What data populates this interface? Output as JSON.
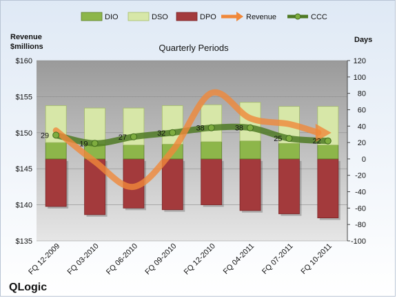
{
  "chart_data": {
    "type": "bar",
    "title": "Quarterly Periods",
    "brand": "QLogic",
    "y_left_label": [
      "Revenue",
      "$millions"
    ],
    "y_right_label": "Days",
    "y_left_range": [
      135,
      160
    ],
    "y_left_ticks": [
      "$160",
      "$155",
      "$150",
      "$145",
      "$140",
      "$135"
    ],
    "y_right_range": [
      -100,
      120
    ],
    "y_right_ticks": [
      "120",
      "100",
      "80",
      "60",
      "40",
      "20",
      "0",
      "-20",
      "-40",
      "-60",
      "-80",
      "-100"
    ],
    "categories": [
      "FQ 12-2009",
      "FQ 03-2010",
      "FQ 06-2010",
      "FQ 09-2010",
      "FQ 12-2010",
      "FQ 04-2011",
      "FQ 07-2011",
      "FQ 10-2011"
    ],
    "series": [
      {
        "name": "DIO",
        "axis": "right",
        "kind": "stacked-bar",
        "color": "#8db64a",
        "values": [
          20,
          18,
          17,
          18,
          21,
          22,
          19,
          17
        ]
      },
      {
        "name": "DSO",
        "axis": "right",
        "kind": "stacked-bar",
        "color": "#d7e7a8",
        "values": [
          45,
          44,
          45,
          47,
          45,
          47,
          45,
          47
        ]
      },
      {
        "name": "DPO",
        "axis": "right",
        "kind": "stacked-bar-negative",
        "color": "#a33a3c",
        "values": [
          -58,
          -68,
          -60,
          -62,
          -56,
          -63,
          -67,
          -72
        ]
      },
      {
        "name": "Revenue",
        "axis": "left",
        "kind": "line",
        "color": "#f0883a",
        "values": [
          150.3,
          146.0,
          142.5,
          147.5,
          155.5,
          152.0,
          151.2,
          149.9
        ]
      },
      {
        "name": "CCC",
        "axis": "right",
        "kind": "line-markers",
        "color": "#4f7a24",
        "values": [
          29,
          19,
          27,
          32,
          38,
          38,
          25,
          22
        ]
      }
    ],
    "data_labels": [
      "29",
      "19",
      "27",
      "32",
      "38",
      "38",
      "25",
      "22"
    ],
    "legend": [
      "DIO",
      "DSO",
      "DPO",
      "Revenue",
      "CCC"
    ],
    "legend_position": "top"
  }
}
